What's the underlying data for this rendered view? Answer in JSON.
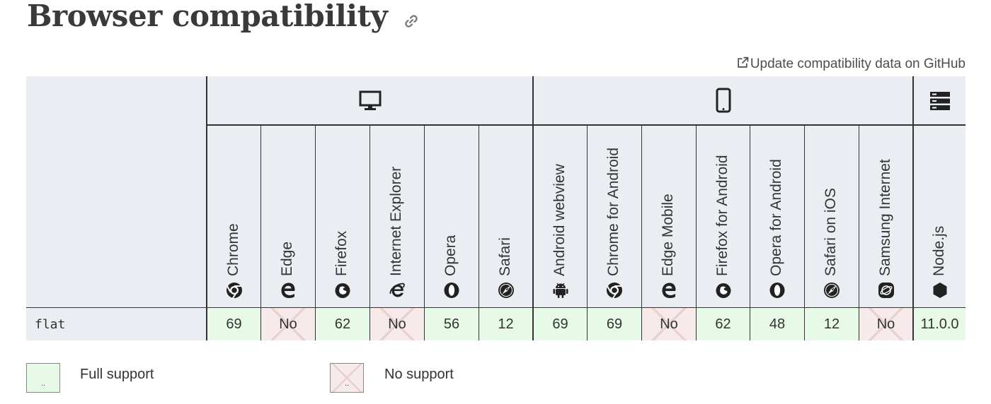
{
  "heading": {
    "title": "Browser compatibility"
  },
  "github_link": {
    "label": "Update compatibility data on GitHub"
  },
  "platforms": [
    {
      "name": "desktop",
      "icon": "desktop-icon"
    },
    {
      "name": "mobile",
      "icon": "mobile-icon"
    },
    {
      "name": "server",
      "icon": "server-icon"
    }
  ],
  "browsers": [
    {
      "label": "Chrome",
      "icon": "chrome-icon"
    },
    {
      "label": "Edge",
      "icon": "edge-icon"
    },
    {
      "label": "Firefox",
      "icon": "firefox-icon"
    },
    {
      "label": "Internet Explorer",
      "icon": "ie-icon"
    },
    {
      "label": "Opera",
      "icon": "opera-icon"
    },
    {
      "label": "Safari",
      "icon": "safari-icon"
    },
    {
      "label": "Android webview",
      "icon": "android-icon"
    },
    {
      "label": "Chrome for Android",
      "icon": "chrome-icon"
    },
    {
      "label": "Edge Mobile",
      "icon": "edge-icon"
    },
    {
      "label": "Firefox for Android",
      "icon": "firefox-icon"
    },
    {
      "label": "Opera for Android",
      "icon": "opera-icon"
    },
    {
      "label": "Safari on iOS",
      "icon": "safari-icon"
    },
    {
      "label": "Samsung Internet",
      "icon": "samsung-icon"
    },
    {
      "label": "Node.js",
      "icon": "nodejs-icon"
    }
  ],
  "rows": [
    {
      "feature": "flat",
      "support": [
        {
          "value": "69",
          "status": "yes"
        },
        {
          "value": "No",
          "status": "no"
        },
        {
          "value": "62",
          "status": "yes"
        },
        {
          "value": "No",
          "status": "no"
        },
        {
          "value": "56",
          "status": "yes"
        },
        {
          "value": "12",
          "status": "yes"
        },
        {
          "value": "69",
          "status": "yes"
        },
        {
          "value": "69",
          "status": "yes"
        },
        {
          "value": "No",
          "status": "no"
        },
        {
          "value": "62",
          "status": "yes"
        },
        {
          "value": "48",
          "status": "yes"
        },
        {
          "value": "12",
          "status": "yes"
        },
        {
          "value": "No",
          "status": "no"
        },
        {
          "value": "11.0.0",
          "status": "yes"
        }
      ]
    }
  ],
  "legend": [
    {
      "status": "yes",
      "box_text": "..",
      "label": "Full support"
    },
    {
      "status": "no",
      "box_text": "..",
      "label": "No support"
    }
  ],
  "colors": {
    "full_support": "#e7fae7",
    "no_support": "#f6eaea",
    "header_bg": "#eaeef2"
  }
}
